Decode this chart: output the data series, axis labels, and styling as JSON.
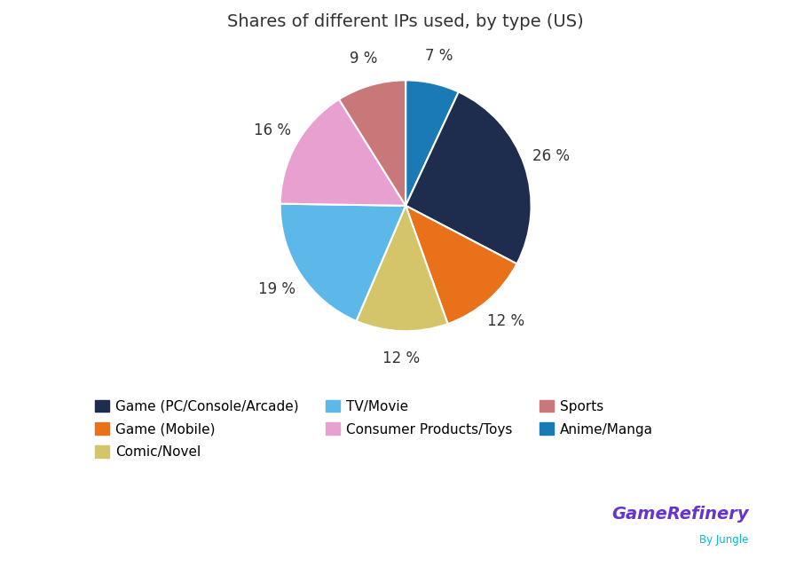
{
  "title": "Shares of different IPs used, by type (US)",
  "slices": [
    {
      "label": "Anime/Manga",
      "value": 7,
      "color": "#1a7ab5"
    },
    {
      "label": "Game (PC/Console/Arcade)",
      "value": 26,
      "color": "#1e2d4d"
    },
    {
      "label": "Game (Mobile)",
      "value": 12,
      "color": "#e8711a"
    },
    {
      "label": "Comic/Novel",
      "value": 12,
      "color": "#d4c46a"
    },
    {
      "label": "TV/Movie",
      "value": 19,
      "color": "#5bb8e8"
    },
    {
      "label": "Consumer Products/Toys",
      "value": 16,
      "color": "#e8a0d0"
    },
    {
      "label": "Sports",
      "value": 9,
      "color": "#c87878"
    }
  ],
  "legend_order": [
    {
      "label": "Game (PC/Console/Arcade)",
      "color": "#1e2d4d"
    },
    {
      "label": "Game (Mobile)",
      "color": "#e8711a"
    },
    {
      "label": "Comic/Novel",
      "color": "#d4c46a"
    },
    {
      "label": "TV/Movie",
      "color": "#5bb8e8"
    },
    {
      "label": "Consumer Products/Toys",
      "color": "#e8a0d0"
    },
    {
      "label": "Sports",
      "color": "#c87878"
    },
    {
      "label": "Anime/Manga",
      "color": "#1a7ab5"
    }
  ],
  "start_angle": 90,
  "background_color": "#ffffff",
  "title_fontsize": 14,
  "label_fontsize": 12,
  "legend_fontsize": 11,
  "logo_text_game": "GameRefinery",
  "logo_text_by": "By Jungle"
}
